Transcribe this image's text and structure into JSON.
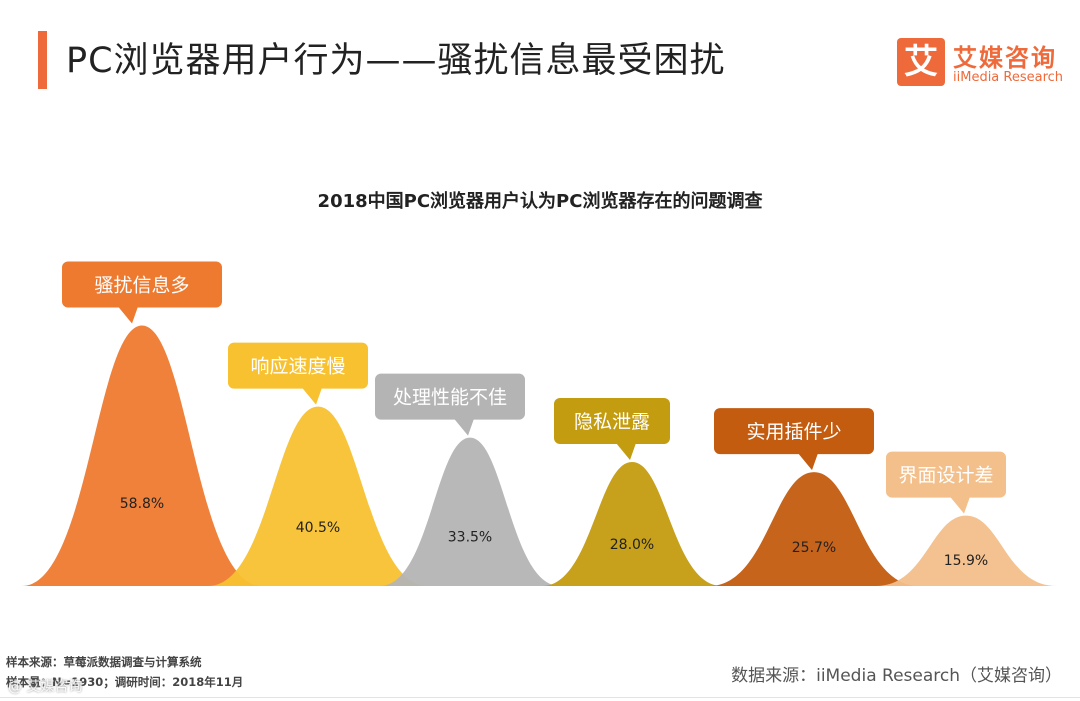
{
  "header": {
    "title": "PC浏览器用户行为——骚扰信息最受困扰",
    "accent_color": "#ee6a3a"
  },
  "logo": {
    "mark": "艾",
    "name_cn": "艾媒咨询",
    "name_en": "iiMedia Research"
  },
  "chart_data": {
    "type": "area",
    "title": "2018中国PC浏览器用户认为PC浏览器存在的问题调查",
    "categories": [
      "骚扰信息多",
      "响应速度慢",
      "处理性能不佳",
      "隐私泄露",
      "实用插件少",
      "界面设计差"
    ],
    "values": [
      58.8,
      40.5,
      33.5,
      28.0,
      25.7,
      15.9
    ],
    "value_labels": [
      "58.8%",
      "40.5%",
      "33.5%",
      "28.0%",
      "25.7%",
      "15.9%"
    ],
    "colors": [
      "#ee7a30",
      "#f7c130",
      "#b4b4b4",
      "#c49c10",
      "#c45c10",
      "#f3bf8a"
    ],
    "unit": "%",
    "legend": "none",
    "grid": false
  },
  "footer": {
    "sample_source": "样本来源：草莓派数据调查与计算系统",
    "sample_info": "样本量：N=1930；调研时间：2018年11月",
    "data_source": "数据来源：iiMedia Research（艾媒咨询）",
    "watermark": "@ 艾媒咨询"
  }
}
